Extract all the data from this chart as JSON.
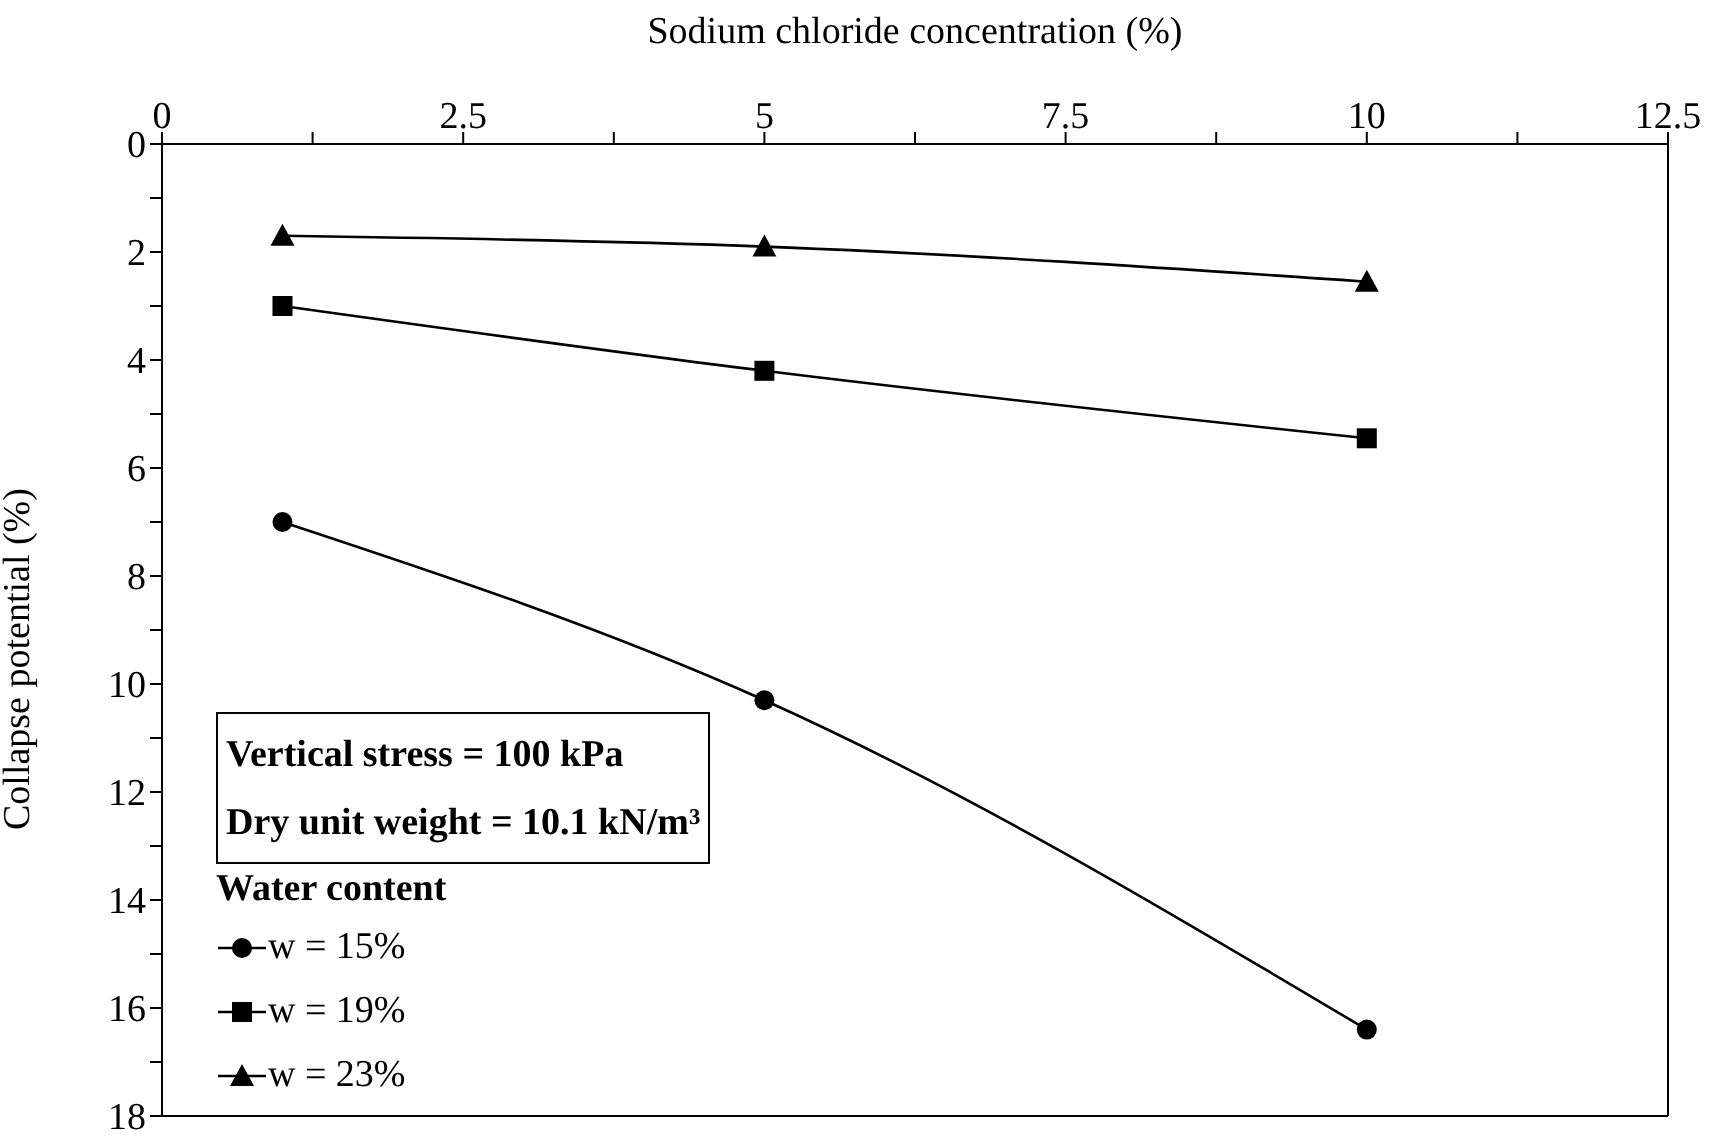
{
  "chart_data": {
    "type": "line",
    "xlabel": "Sodium chloride concentration (%)",
    "ylabel": "Collapse potential (%)",
    "legend_title": "Water content",
    "legend": "bottom left",
    "annotations": [
      "Vertical stress = 100 kPa",
      "Dry unit weight = 10.1 kN/m³"
    ],
    "x": [
      1,
      5,
      10
    ],
    "series": [
      {
        "name": "w = 15%",
        "color": "#000000",
        "marker": "circle",
        "values": [
          7,
          10.3,
          16.4
        ]
      },
      {
        "name": "w = 19%",
        "color": "#000000",
        "marker": "square",
        "values": [
          3,
          4.2,
          5.45
        ]
      },
      {
        "name": "w = 23%",
        "color": "#000000",
        "marker": "triangle",
        "values": [
          1.7,
          1.9,
          2.55
        ]
      }
    ],
    "xlim": [
      0,
      12.5
    ],
    "ylim": [
      18,
      0
    ],
    "xticks": [
      0,
      {
        "value": 1.25,
        "label": null
      },
      2.5,
      {
        "value": 3.75,
        "label": null
      },
      5,
      {
        "value": 6.25,
        "label": null
      },
      7.5,
      {
        "value": 8.75,
        "label": null
      },
      10,
      {
        "value": 11.25,
        "label": null
      },
      12.5
    ],
    "yticks": [
      0,
      {
        "value": 1,
        "label": null
      },
      2,
      {
        "value": 3,
        "label": null
      },
      4,
      {
        "value": 5,
        "label": null
      },
      6,
      {
        "value": 7,
        "label": null
      },
      8,
      {
        "value": 9,
        "label": null
      },
      10,
      {
        "value": 11,
        "label": null
      },
      12,
      {
        "value": 13,
        "label": null
      },
      14,
      {
        "value": 15,
        "label": null
      },
      16,
      {
        "value": 17,
        "label": null
      },
      18
    ],
    "line_style": "solid"
  }
}
